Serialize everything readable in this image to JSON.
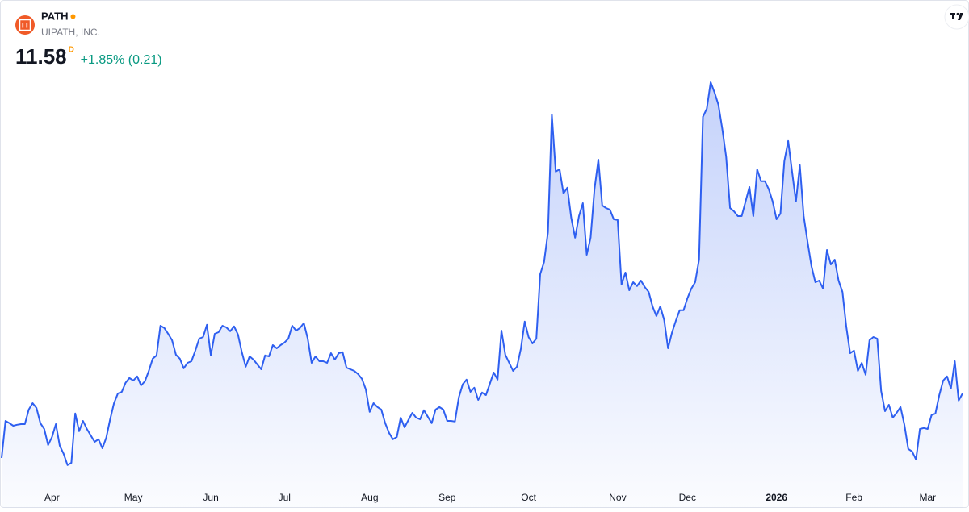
{
  "header": {
    "symbol": "PATH",
    "name": "UIPATH, INC.",
    "price": "11.58",
    "period": "D",
    "change": "+1.85% (0.21)"
  },
  "chart_data": {
    "type": "area",
    "color": "#2e5ff0",
    "ylim": [
      8.78,
      21.53
    ],
    "categories": [
      null,
      null,
      null,
      null,
      null,
      null,
      null,
      null,
      null,
      null,
      null,
      null,
      null,
      "Apr",
      null,
      null,
      null,
      null,
      null,
      null,
      null,
      null,
      null,
      null,
      null,
      null,
      null,
      null,
      null,
      null,
      null,
      null,
      null,
      null,
      "May",
      null,
      null,
      null,
      null,
      null,
      null,
      null,
      null,
      null,
      null,
      null,
      null,
      null,
      null,
      null,
      null,
      null,
      null,
      null,
      "Jun",
      null,
      null,
      null,
      null,
      null,
      null,
      null,
      null,
      null,
      null,
      null,
      null,
      null,
      null,
      null,
      null,
      null,
      null,
      "Jul",
      null,
      null,
      null,
      null,
      null,
      null,
      null,
      null,
      null,
      null,
      null,
      null,
      null,
      null,
      null,
      null,
      null,
      null,
      null,
      null,
      null,
      "Aug",
      null,
      null,
      null,
      null,
      null,
      null,
      null,
      null,
      null,
      null,
      null,
      null,
      null,
      null,
      null,
      null,
      null,
      null,
      null,
      "Sep",
      null,
      null,
      null,
      null,
      null,
      null,
      null,
      null,
      null,
      null,
      null,
      null,
      null,
      null,
      null,
      null,
      null,
      null,
      null,
      null,
      "Oct",
      null,
      null,
      null,
      null,
      null,
      null,
      null,
      null,
      null,
      null,
      null,
      null,
      null,
      null,
      null,
      null,
      null,
      null,
      null,
      null,
      null,
      null,
      "Nov",
      null,
      null,
      null,
      null,
      null,
      null,
      null,
      null,
      null,
      null,
      null,
      null,
      null,
      null,
      null,
      null,
      null,
      "Dec",
      null,
      null,
      null,
      null,
      null,
      null,
      null,
      null,
      null,
      null,
      null,
      null,
      null,
      null,
      null,
      null,
      null,
      null,
      null,
      null,
      null,
      null,
      "2026",
      null,
      null,
      null,
      null,
      null,
      null,
      null,
      null,
      null,
      null,
      null,
      null,
      null,
      null,
      null,
      null,
      null,
      null,
      null,
      "Feb",
      null,
      null,
      null,
      null,
      null,
      null,
      null,
      null,
      null,
      null,
      null,
      null,
      null,
      null,
      null,
      null,
      null,
      null,
      "Mar",
      null,
      null,
      null,
      null,
      null,
      null,
      null,
      null,
      null
    ],
    "values": [
      9.58,
      10.73,
      10.66,
      10.58,
      10.61,
      10.63,
      10.63,
      11.08,
      11.28,
      11.13,
      10.66,
      10.48,
      9.98,
      10.23,
      10.63,
      9.96,
      9.71,
      9.36,
      9.43,
      10.96,
      10.41,
      10.73,
      10.48,
      10.28,
      10.08,
      10.16,
      9.88,
      10.21,
      10.78,
      11.28,
      11.58,
      11.63,
      11.91,
      12.06,
      11.98,
      12.11,
      11.83,
      11.96,
      12.28,
      12.66,
      12.76,
      13.68,
      13.61,
      13.43,
      13.23,
      12.78,
      12.66,
      12.36,
      12.53,
      12.58,
      12.91,
      13.28,
      13.33,
      13.71,
      12.76,
      13.43,
      13.48,
      13.68,
      13.63,
      13.51,
      13.66,
      13.41,
      12.86,
      12.41,
      12.73,
      12.63,
      12.48,
      12.33,
      12.76,
      12.73,
      13.08,
      12.98,
      13.08,
      13.16,
      13.28,
      13.68,
      13.53,
      13.61,
      13.76,
      13.28,
      12.53,
      12.73,
      12.58,
      12.58,
      12.53,
      12.83,
      12.63,
      12.83,
      12.86,
      12.38,
      12.33,
      12.28,
      12.18,
      12.03,
      11.71,
      11.01,
      11.28,
      11.16,
      11.08,
      10.66,
      10.36,
      10.16,
      10.23,
      10.83,
      10.53,
      10.76,
      10.98,
      10.83,
      10.78,
      11.06,
      10.86,
      10.66,
      11.08,
      11.16,
      11.08,
      10.73,
      10.73,
      10.71,
      11.46,
      11.86,
      12.01,
      11.63,
      11.76,
      11.38,
      11.61,
      11.53,
      11.88,
      12.23,
      12.01,
      13.53,
      12.78,
      12.53,
      12.28,
      12.41,
      12.96,
      13.81,
      13.33,
      13.13,
      13.28,
      15.28,
      15.66,
      16.58,
      20.23,
      18.46,
      18.53,
      17.78,
      17.96,
      17.03,
      16.41,
      17.08,
      17.48,
      15.88,
      16.41,
      17.91,
      18.83,
      17.41,
      17.33,
      17.28,
      16.98,
      16.96,
      14.96,
      15.33,
      14.78,
      15.03,
      14.91,
      15.08,
      14.88,
      14.73,
      14.28,
      13.98,
      14.28,
      13.86,
      12.98,
      13.46,
      13.83,
      14.16,
      14.16,
      14.53,
      14.83,
      15.03,
      15.73,
      20.16,
      20.41,
      21.23,
      20.91,
      20.53,
      19.78,
      18.91,
      17.33,
      17.23,
      17.08,
      17.08,
      17.53,
      17.98,
      17.08,
      18.53,
      18.16,
      18.16,
      17.91,
      17.53,
      16.98,
      17.16,
      18.78,
      19.41,
      18.46,
      17.53,
      18.66,
      17.08,
      16.28,
      15.53,
      15.03,
      15.08,
      14.83,
      16.03,
      15.58,
      15.73,
      15.08,
      14.73,
      13.66,
      12.83,
      12.91,
      12.28,
      12.53,
      12.16,
      13.23,
      13.33,
      13.28,
      11.66,
      11.03,
      11.23,
      10.83,
      10.98,
      11.16,
      10.61,
      9.86,
      9.78,
      9.53,
      10.48,
      10.51,
      10.48,
      10.91,
      10.96,
      11.53,
      11.98,
      12.11,
      11.73,
      12.58,
      11.36,
      11.58
    ]
  }
}
